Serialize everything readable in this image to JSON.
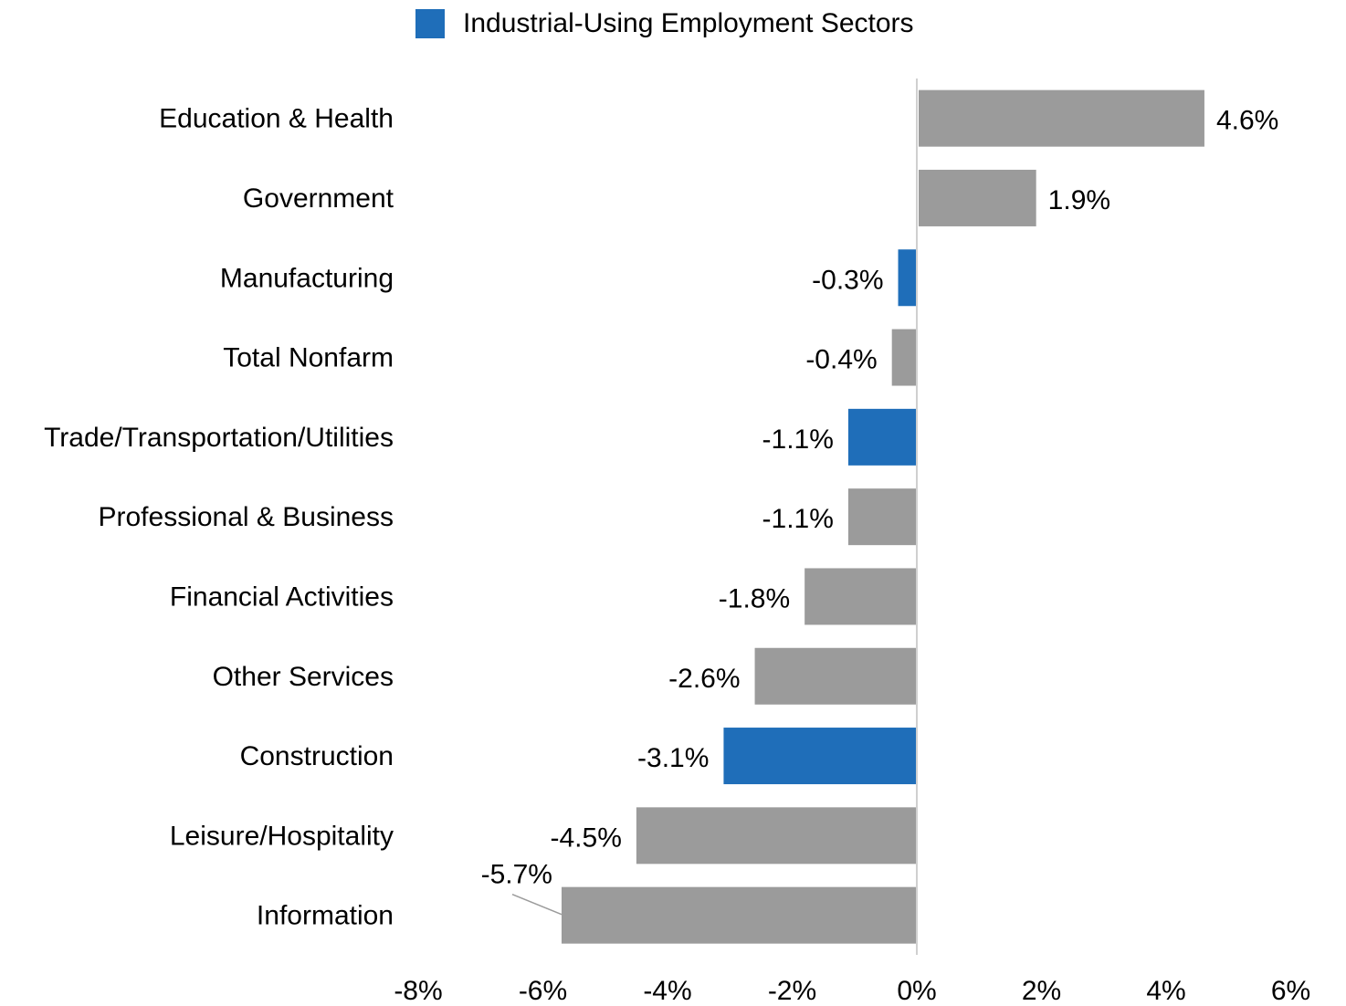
{
  "chart_data": {
    "type": "bar",
    "orientation": "horizontal",
    "legend": {
      "label": "Industrial-Using Employment Sectors",
      "color": "#1F6EB9",
      "position": "top"
    },
    "default_bar_color": "#9B9B9B",
    "categories": [
      "Education & Health",
      "Government",
      "Manufacturing",
      "Total Nonfarm",
      "Trade/Transportation/Utilities",
      "Professional & Business",
      "Financial Activities",
      "Other Services",
      "Construction",
      "Leisure/Hospitality",
      "Information"
    ],
    "values": [
      4.6,
      1.9,
      -0.3,
      -0.4,
      -1.1,
      -1.1,
      -1.8,
      -2.6,
      -3.1,
      -4.5,
      -5.7
    ],
    "data_labels": [
      "4.6%",
      "1.9%",
      "-0.3%",
      "-0.4%",
      "-1.1%",
      "-1.1%",
      "-1.8%",
      "-2.6%",
      "-3.1%",
      "-4.5%",
      "-5.7%"
    ],
    "industrial_using": [
      false,
      false,
      true,
      false,
      true,
      false,
      false,
      false,
      true,
      false,
      false
    ],
    "x_ticks": [
      -8,
      -6,
      -4,
      -2,
      0,
      2,
      4,
      6
    ],
    "x_tick_labels": [
      "-8%",
      "-6%",
      "-4%",
      "-2%",
      "0%",
      "2%",
      "4%",
      "6%"
    ],
    "xlim": [
      -8,
      6
    ],
    "grid": false
  }
}
